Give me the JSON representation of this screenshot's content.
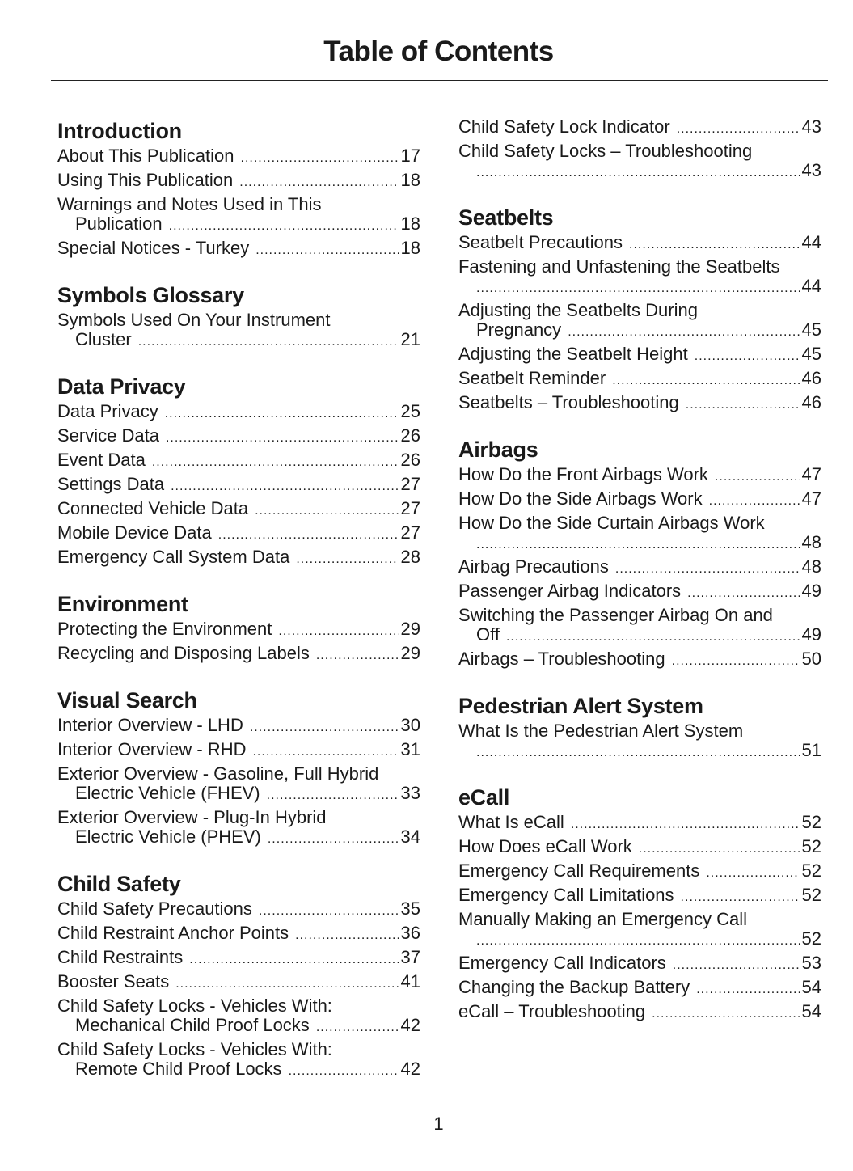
{
  "title": "Table of Contents",
  "page_number": "1",
  "columns": [
    [
      {
        "heading": "Introduction",
        "entries": [
          {
            "lines": [
              "About This Publication"
            ],
            "page": "17"
          },
          {
            "lines": [
              "Using This Publication"
            ],
            "page": "18"
          },
          {
            "lines": [
              "Warnings and Notes Used in This",
              "Publication"
            ],
            "page": "18"
          },
          {
            "lines": [
              "Special Notices - Turkey"
            ],
            "page": "18"
          }
        ]
      },
      {
        "heading": "Symbols Glossary",
        "entries": [
          {
            "lines": [
              "Symbols Used On Your Instrument",
              "Cluster"
            ],
            "page": "21"
          }
        ]
      },
      {
        "heading": "Data Privacy",
        "entries": [
          {
            "lines": [
              "Data Privacy"
            ],
            "page": "25"
          },
          {
            "lines": [
              "Service Data"
            ],
            "page": "26"
          },
          {
            "lines": [
              "Event Data"
            ],
            "page": "26"
          },
          {
            "lines": [
              "Settings Data"
            ],
            "page": "27"
          },
          {
            "lines": [
              "Connected Vehicle Data"
            ],
            "page": "27"
          },
          {
            "lines": [
              "Mobile Device Data"
            ],
            "page": "27"
          },
          {
            "lines": [
              "Emergency Call System Data"
            ],
            "page": "28"
          }
        ]
      },
      {
        "heading": "Environment",
        "entries": [
          {
            "lines": [
              "Protecting the Environment"
            ],
            "page": "29"
          },
          {
            "lines": [
              "Recycling and Disposing Labels"
            ],
            "page": "29"
          }
        ]
      },
      {
        "heading": "Visual Search",
        "entries": [
          {
            "lines": [
              "Interior Overview - LHD"
            ],
            "page": "30"
          },
          {
            "lines": [
              "Interior Overview - RHD"
            ],
            "page": "31"
          },
          {
            "lines": [
              "Exterior Overview - Gasoline, Full Hybrid",
              "Electric Vehicle (FHEV)"
            ],
            "page": "33"
          },
          {
            "lines": [
              "Exterior Overview - Plug-In Hybrid",
              "Electric Vehicle (PHEV)"
            ],
            "page": "34"
          }
        ]
      },
      {
        "heading": "Child Safety",
        "entries": [
          {
            "lines": [
              "Child Safety Precautions"
            ],
            "page": "35"
          },
          {
            "lines": [
              "Child Restraint Anchor Points"
            ],
            "page": "36"
          },
          {
            "lines": [
              "Child Restraints"
            ],
            "page": "37"
          },
          {
            "lines": [
              "Booster Seats"
            ],
            "page": "41"
          },
          {
            "lines": [
              "Child Safety Locks - Vehicles With:",
              "Mechanical Child Proof Locks"
            ],
            "page": "42"
          },
          {
            "lines": [
              "Child Safety Locks - Vehicles With:",
              "Remote Child Proof Locks"
            ],
            "page": "42"
          }
        ]
      }
    ],
    [
      {
        "heading": "",
        "entries": [
          {
            "lines": [
              "Child Safety Lock Indicator"
            ],
            "page": "43"
          },
          {
            "lines": [
              "Child Safety Locks – Troubleshooting",
              ""
            ],
            "page": "43"
          }
        ]
      },
      {
        "heading": "Seatbelts",
        "entries": [
          {
            "lines": [
              "Seatbelt Precautions"
            ],
            "page": "44"
          },
          {
            "lines": [
              "Fastening and Unfastening the Seatbelts",
              ""
            ],
            "page": "44"
          },
          {
            "lines": [
              "Adjusting the Seatbelts During",
              "Pregnancy"
            ],
            "page": "45"
          },
          {
            "lines": [
              "Adjusting the Seatbelt Height"
            ],
            "page": "45"
          },
          {
            "lines": [
              "Seatbelt Reminder"
            ],
            "page": "46"
          },
          {
            "lines": [
              "Seatbelts – Troubleshooting"
            ],
            "page": "46"
          }
        ]
      },
      {
        "heading": "Airbags",
        "entries": [
          {
            "lines": [
              "How Do the Front Airbags Work"
            ],
            "page": "47"
          },
          {
            "lines": [
              "How Do the Side Airbags Work"
            ],
            "page": "47"
          },
          {
            "lines": [
              "How Do the Side Curtain Airbags Work",
              ""
            ],
            "page": "48"
          },
          {
            "lines": [
              "Airbag Precautions"
            ],
            "page": "48"
          },
          {
            "lines": [
              "Passenger Airbag Indicators"
            ],
            "page": "49"
          },
          {
            "lines": [
              "Switching the Passenger Airbag On and",
              "Off"
            ],
            "page": "49"
          },
          {
            "lines": [
              "Airbags – Troubleshooting"
            ],
            "page": "50"
          }
        ]
      },
      {
        "heading": "Pedestrian Alert System",
        "entries": [
          {
            "lines": [
              "What Is the Pedestrian Alert System",
              ""
            ],
            "page": "51"
          }
        ]
      },
      {
        "heading": "eCall",
        "entries": [
          {
            "lines": [
              "What Is eCall"
            ],
            "page": "52"
          },
          {
            "lines": [
              "How Does eCall Work"
            ],
            "page": "52"
          },
          {
            "lines": [
              "Emergency Call Requirements"
            ],
            "page": "52"
          },
          {
            "lines": [
              "Emergency Call Limitations"
            ],
            "page": "52"
          },
          {
            "lines": [
              "Manually Making an Emergency Call",
              ""
            ],
            "page": "52"
          },
          {
            "lines": [
              "Emergency Call Indicators"
            ],
            "page": "53"
          },
          {
            "lines": [
              "Changing the Backup Battery"
            ],
            "page": "54"
          },
          {
            "lines": [
              "eCall – Troubleshooting"
            ],
            "page": "54"
          }
        ]
      }
    ]
  ]
}
